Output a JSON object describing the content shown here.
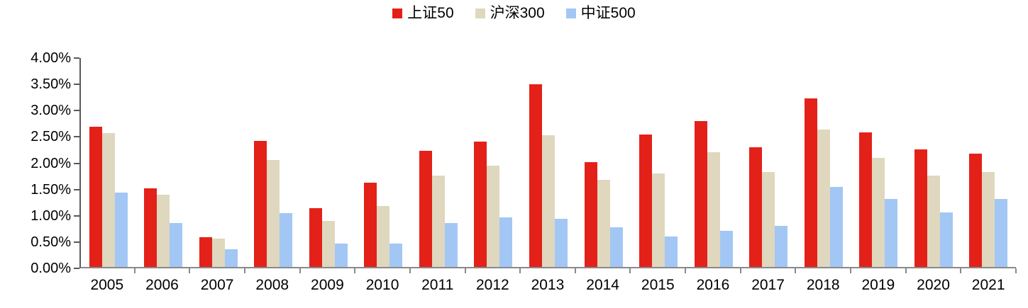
{
  "chart_data": {
    "type": "bar",
    "title": "",
    "xlabel": "",
    "ylabel": "",
    "ylim": [
      0,
      4
    ],
    "grid": false,
    "legend_position": "top-center",
    "y_tick_labels": [
      "4.00%",
      "3.50%",
      "3.00%",
      "2.50%",
      "2.00%",
      "1.50%",
      "1.00%",
      "0.50%",
      "0.00%"
    ],
    "y_tick_values": [
      4.0,
      3.5,
      3.0,
      2.5,
      2.0,
      1.5,
      1.0,
      0.5,
      0.0
    ],
    "categories": [
      "2005",
      "2006",
      "2007",
      "2008",
      "2009",
      "2010",
      "2011",
      "2012",
      "2013",
      "2014",
      "2015",
      "2016",
      "2017",
      "2018",
      "2019",
      "2020",
      "2021"
    ],
    "series": [
      {
        "name": "上证50",
        "color": "#E32119",
        "values": [
          2.67,
          1.5,
          0.57,
          2.4,
          1.12,
          1.6,
          2.21,
          2.39,
          3.47,
          2.0,
          2.52,
          2.77,
          2.28,
          3.21,
          2.56,
          2.23,
          2.15
        ]
      },
      {
        "name": "沪深300",
        "color": "#DFD7BE",
        "values": [
          2.55,
          1.38,
          0.54,
          2.03,
          0.88,
          1.16,
          1.74,
          1.93,
          2.5,
          1.66,
          1.78,
          2.18,
          1.8,
          2.61,
          2.07,
          1.74,
          1.81
        ]
      },
      {
        "name": "中证500",
        "color": "#A3C7F5",
        "values": [
          1.41,
          0.83,
          0.34,
          1.03,
          0.45,
          0.44,
          0.84,
          0.94,
          0.92,
          0.75,
          0.58,
          0.69,
          0.78,
          1.52,
          1.29,
          1.04,
          1.29
        ]
      }
    ],
    "axis_colors": {
      "y_axis": "#595959",
      "x_axis": "#898989"
    }
  }
}
